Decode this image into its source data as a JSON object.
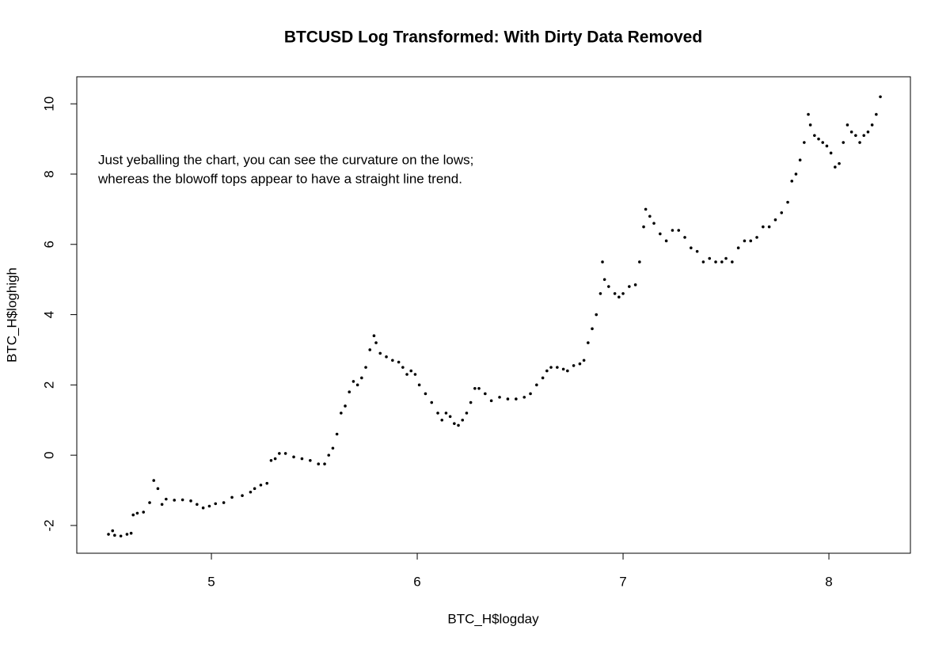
{
  "chart_data": {
    "type": "scatter",
    "title": "BTCUSD Log Transformed: With Dirty Data Removed",
    "xlabel": "BTC_H$logday",
    "ylabel": "BTC_H$loghigh",
    "annotation": [
      "Just yeballing the chart, you can see the curvature on the lows;",
      "whereas the blowoff tops appear to have a straight line trend."
    ],
    "xlim": [
      4.346,
      8.396
    ],
    "ylim": [
      -2.79,
      10.77
    ],
    "xticks": [
      5,
      6,
      7,
      8
    ],
    "yticks": [
      -2,
      0,
      2,
      4,
      6,
      8,
      10
    ],
    "color": "#000000",
    "x": [
      4.5,
      4.52,
      4.53,
      4.56,
      4.59,
      4.61,
      4.62,
      4.64,
      4.67,
      4.7,
      4.72,
      4.74,
      4.76,
      4.78,
      4.82,
      4.86,
      4.9,
      4.93,
      4.96,
      4.99,
      5.02,
      5.06,
      5.1,
      5.15,
      5.19,
      5.21,
      5.24,
      5.27,
      5.29,
      5.31,
      5.33,
      5.36,
      5.4,
      5.44,
      5.48,
      5.52,
      5.55,
      5.57,
      5.59,
      5.61,
      5.63,
      5.65,
      5.67,
      5.69,
      5.71,
      5.73,
      5.75,
      5.77,
      5.79,
      5.8,
      5.82,
      5.85,
      5.88,
      5.91,
      5.93,
      5.95,
      5.97,
      5.99,
      6.01,
      6.04,
      6.07,
      6.1,
      6.12,
      6.14,
      6.16,
      6.18,
      6.2,
      6.22,
      6.24,
      6.26,
      6.28,
      6.3,
      6.33,
      6.36,
      6.4,
      6.44,
      6.48,
      6.52,
      6.55,
      6.58,
      6.61,
      6.63,
      6.65,
      6.68,
      6.71,
      6.73,
      6.76,
      6.79,
      6.81,
      6.83,
      6.85,
      6.87,
      6.89,
      6.9,
      6.91,
      6.93,
      6.96,
      6.98,
      7.0,
      7.03,
      7.06,
      7.08,
      7.1,
      7.11,
      7.13,
      7.15,
      7.18,
      7.21,
      7.24,
      7.27,
      7.3,
      7.33,
      7.36,
      7.39,
      7.42,
      7.45,
      7.48,
      7.5,
      7.53,
      7.56,
      7.59,
      7.62,
      7.65,
      7.68,
      7.71,
      7.74,
      7.77,
      7.8,
      7.82,
      7.84,
      7.86,
      7.88,
      7.9,
      7.91,
      7.93,
      7.95,
      7.97,
      7.99,
      8.01,
      8.03,
      8.05,
      8.07,
      8.09,
      8.11,
      8.13,
      8.15,
      8.17,
      8.19,
      8.21,
      8.23,
      8.25
    ],
    "values": [
      -2.25,
      -2.15,
      -2.28,
      -2.3,
      -2.25,
      -2.22,
      -1.7,
      -1.65,
      -1.62,
      -1.35,
      -0.72,
      -0.95,
      -1.4,
      -1.25,
      -1.28,
      -1.27,
      -1.3,
      -1.4,
      -1.5,
      -1.45,
      -1.38,
      -1.35,
      -1.2,
      -1.15,
      -1.05,
      -0.95,
      -0.85,
      -0.8,
      -0.15,
      -0.1,
      0.05,
      0.05,
      -0.05,
      -0.1,
      -0.15,
      -0.25,
      -0.25,
      0.0,
      0.2,
      0.6,
      1.2,
      1.4,
      1.8,
      2.1,
      2.0,
      2.2,
      2.5,
      3.0,
      3.4,
      3.2,
      2.9,
      2.8,
      2.7,
      2.65,
      2.5,
      2.3,
      2.4,
      2.3,
      2.0,
      1.75,
      1.5,
      1.2,
      1.0,
      1.2,
      1.1,
      0.9,
      0.85,
      1.0,
      1.2,
      1.5,
      1.9,
      1.9,
      1.75,
      1.55,
      1.65,
      1.6,
      1.6,
      1.65,
      1.75,
      2.0,
      2.2,
      2.4,
      2.5,
      2.5,
      2.45,
      2.4,
      2.55,
      2.6,
      2.7,
      3.2,
      3.6,
      4.0,
      4.6,
      5.5,
      5.0,
      4.8,
      4.6,
      4.5,
      4.6,
      4.8,
      4.85,
      5.5,
      6.5,
      7.0,
      6.8,
      6.6,
      6.3,
      6.1,
      6.4,
      6.4,
      6.2,
      5.9,
      5.8,
      5.5,
      5.6,
      5.5,
      5.5,
      5.6,
      5.5,
      5.9,
      6.1,
      6.1,
      6.2,
      6.5,
      6.5,
      6.7,
      6.9,
      7.2,
      7.8,
      8.0,
      8.4,
      8.9,
      9.7,
      9.4,
      9.1,
      9.0,
      8.9,
      8.8,
      8.6,
      8.2,
      8.3,
      8.9,
      9.4,
      9.2,
      9.1,
      8.9,
      9.1,
      9.2,
      9.4,
      9.7,
      10.2
    ]
  }
}
